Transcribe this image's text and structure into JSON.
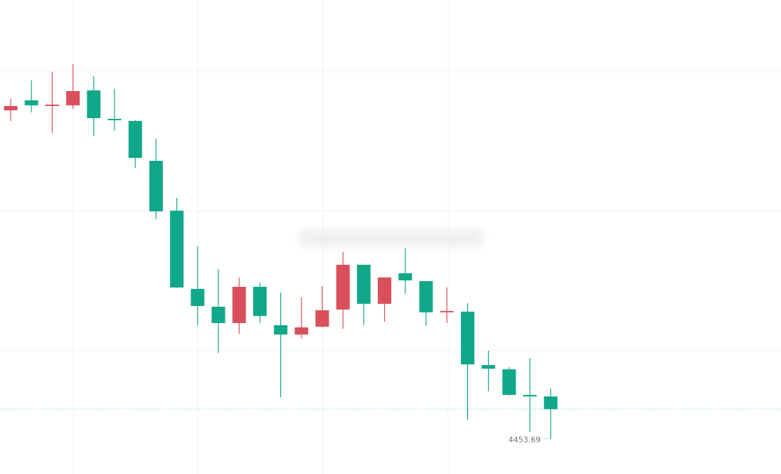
{
  "chart_data": {
    "type": "candlestick",
    "categories": [
      null,
      null,
      null,
      null,
      null,
      null,
      null,
      null,
      null,
      null,
      null,
      null,
      null,
      null,
      null,
      null,
      null,
      null,
      null,
      null,
      null,
      null,
      null,
      null,
      null,
      null,
      null
    ],
    "open": [
      4477.24,
      4477.96,
      4477.55,
      4477.6,
      4478.67,
      4476.63,
      4476.48,
      4473.62,
      4470.05,
      4464.44,
      4463.16,
      4461.99,
      4464.59,
      4461.84,
      4461.17,
      4461.73,
      4462.96,
      4466.17,
      4463.37,
      4465.56,
      4465.0,
      4462.76,
      4462.81,
      4458.98,
      4458.67,
      4456.84,
      4456.73
    ],
    "high": [
      4478.06,
      4479.39,
      4480.0,
      4480.56,
      4479.69,
      4478.78,
      4476.53,
      4475.2,
      4470.97,
      4467.5,
      4465.87,
      4465.26,
      4464.9,
      4464.18,
      4463.83,
      4464.64,
      4467.09,
      4466.17,
      4465.26,
      4467.35,
      4465.0,
      4464.54,
      4463.42,
      4460.0,
      4458.83,
      4459.49,
      4457.3
    ],
    "low": [
      4476.48,
      4477.09,
      4475.61,
      4477.35,
      4475.41,
      4475.77,
      4473.11,
      4469.44,
      4464.49,
      4461.84,
      4459.85,
      4461.22,
      4461.99,
      4456.68,
      4460.87,
      4461.68,
      4461.58,
      4461.84,
      4462.09,
      4464.08,
      4461.79,
      4461.99,
      4455.05,
      4457.09,
      4456.79,
      4454.18,
      4453.69
    ],
    "close": [
      4477.55,
      4477.6,
      4477.65,
      4478.62,
      4476.68,
      4476.53,
      4473.83,
      4470.0,
      4464.54,
      4463.21,
      4461.99,
      4464.59,
      4462.5,
      4461.17,
      4461.68,
      4462.91,
      4466.17,
      4463.37,
      4465.26,
      4465.05,
      4462.76,
      4462.86,
      4459.03,
      4458.72,
      4456.84,
      4456.73,
      4455.82
    ],
    "up_color": "#d9505c",
    "down_color": "#11a88a",
    "ylim": [
      4451.17,
      4485.15
    ],
    "grid_lines": [
      4460,
      4470,
      4480
    ]
  }
}
